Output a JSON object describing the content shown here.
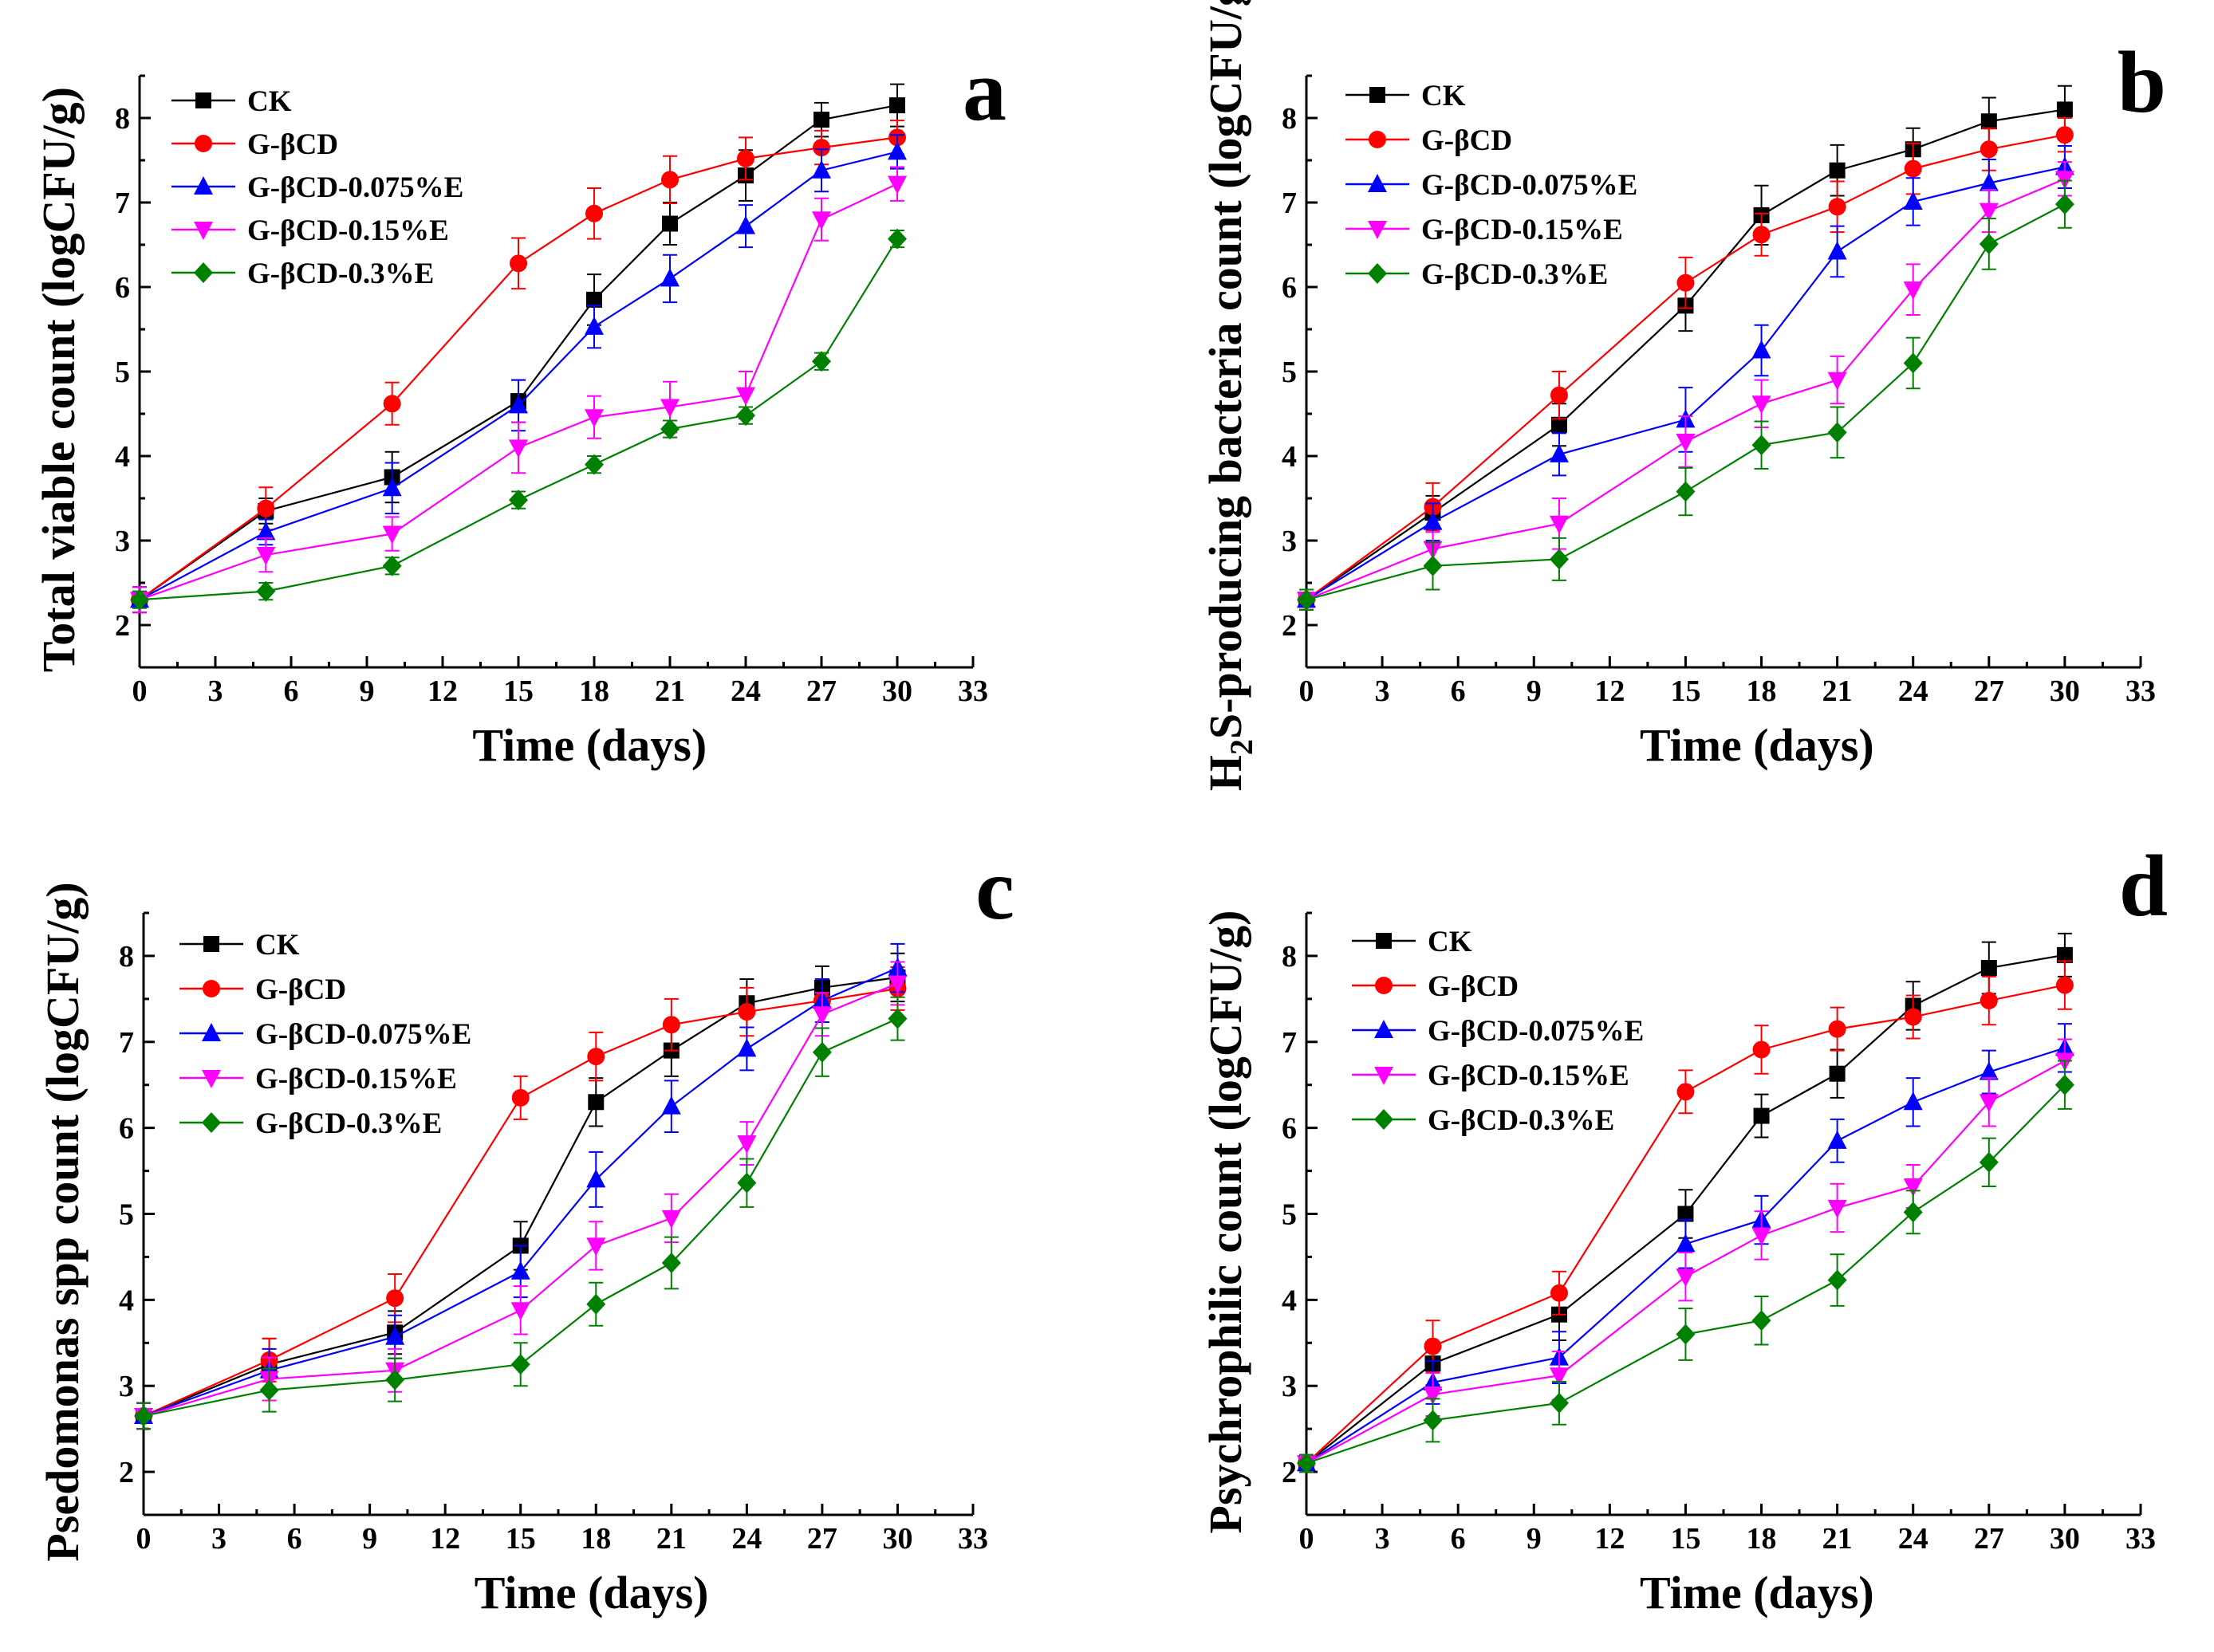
{
  "chart_data": [
    {
      "type": "line",
      "panel": "a",
      "xlabel": "Time (days)",
      "ylabel": "Total viable count (logCFU/g)",
      "ylabel_sub": "",
      "ylabel_rest": "",
      "xlim": [
        0,
        33
      ],
      "ylim": [
        1.5,
        8.5
      ],
      "xticks": [
        0,
        3,
        6,
        9,
        12,
        15,
        18,
        21,
        24,
        27,
        30,
        33
      ],
      "yticks": [
        2,
        3,
        4,
        5,
        6,
        7,
        8
      ],
      "x": [
        0,
        5,
        10,
        15,
        18,
        21,
        24,
        27,
        30
      ],
      "series": [
        {
          "name": "CK",
          "color": "#000000",
          "marker": "square",
          "values": [
            2.3,
            3.35,
            3.75,
            4.65,
            5.85,
            6.75,
            7.32,
            7.98,
            8.15
          ],
          "errors": [
            0.15,
            0.15,
            0.3,
            0.25,
            0.3,
            0.25,
            0.3,
            0.2,
            0.25
          ]
        },
        {
          "name": "G-βCD",
          "color": "#ff0000",
          "marker": "circle",
          "values": [
            2.3,
            3.38,
            4.62,
            6.28,
            6.87,
            7.27,
            7.52,
            7.65,
            7.77
          ],
          "errors": [
            0.15,
            0.25,
            0.25,
            0.3,
            0.3,
            0.28,
            0.25,
            0.2,
            0.2
          ]
        },
        {
          "name": "G-βCD-0.075%E",
          "color": "#0000ff",
          "marker": "triangle-up",
          "values": [
            2.3,
            3.1,
            3.62,
            4.6,
            5.53,
            6.1,
            6.72,
            7.38,
            7.6
          ],
          "errors": [
            0.15,
            0.15,
            0.3,
            0.3,
            0.25,
            0.28,
            0.25,
            0.25,
            0.2
          ]
        },
        {
          "name": "G-βCD-0.15%E",
          "color": "#ff00ff",
          "marker": "triangle-down",
          "values": [
            2.3,
            2.83,
            3.08,
            4.1,
            4.46,
            4.58,
            4.72,
            6.8,
            7.22
          ],
          "errors": [
            0.15,
            0.2,
            0.2,
            0.3,
            0.25,
            0.3,
            0.28,
            0.25,
            0.2
          ]
        },
        {
          "name": "G-βCD-0.3%E",
          "color": "#008000",
          "marker": "diamond",
          "values": [
            2.3,
            2.4,
            2.7,
            3.48,
            3.9,
            4.32,
            4.48,
            5.12,
            6.57
          ],
          "errors": [
            0.1,
            0.1,
            0.1,
            0.1,
            0.1,
            0.1,
            0.1,
            0.1,
            0.1
          ]
        }
      ]
    },
    {
      "type": "line",
      "panel": "b",
      "xlabel": "Time (days)",
      "ylabel": "H",
      "ylabel_sub": "2",
      "ylabel_rest": "S-producing bacteria count (logCFU/g)",
      "xlim": [
        0,
        33
      ],
      "ylim": [
        1.5,
        8.5
      ],
      "xticks": [
        0,
        3,
        6,
        9,
        12,
        15,
        18,
        21,
        24,
        27,
        30,
        33
      ],
      "yticks": [
        2,
        3,
        4,
        5,
        6,
        7,
        8
      ],
      "x": [
        0,
        5,
        10,
        15,
        18,
        21,
        24,
        27,
        30
      ],
      "series": [
        {
          "name": "CK",
          "color": "#000000",
          "marker": "square",
          "values": [
            2.3,
            3.33,
            4.37,
            5.78,
            6.85,
            7.38,
            7.63,
            7.96,
            8.1
          ],
          "errors": [
            0.12,
            0.2,
            0.25,
            0.3,
            0.35,
            0.3,
            0.25,
            0.28,
            0.28
          ]
        },
        {
          "name": "G-βCD",
          "color": "#ff0000",
          "marker": "circle",
          "values": [
            2.3,
            3.4,
            4.72,
            6.05,
            6.62,
            6.95,
            7.4,
            7.63,
            7.8
          ],
          "errors": [
            0.12,
            0.28,
            0.28,
            0.3,
            0.25,
            0.3,
            0.3,
            0.25,
            0.2
          ]
        },
        {
          "name": "G-βCD-0.075%E",
          "color": "#0000ff",
          "marker": "triangle-up",
          "values": [
            2.3,
            3.22,
            4.02,
            4.43,
            5.25,
            6.42,
            7.01,
            7.23,
            7.42
          ],
          "errors": [
            0.12,
            0.22,
            0.25,
            0.38,
            0.3,
            0.3,
            0.28,
            0.28,
            0.25
          ]
        },
        {
          "name": "G-βCD-0.15%E",
          "color": "#ff00ff",
          "marker": "triangle-down",
          "values": [
            2.3,
            2.9,
            3.2,
            4.17,
            4.62,
            4.9,
            5.97,
            6.9,
            7.28
          ],
          "errors": [
            0.12,
            0.2,
            0.3,
            0.3,
            0.28,
            0.28,
            0.3,
            0.25,
            0.2
          ]
        },
        {
          "name": "G-βCD-0.3%E",
          "color": "#008000",
          "marker": "diamond",
          "values": [
            2.3,
            2.7,
            2.78,
            3.58,
            4.13,
            4.28,
            5.1,
            6.51,
            6.98
          ],
          "errors": [
            0.12,
            0.28,
            0.25,
            0.28,
            0.28,
            0.3,
            0.3,
            0.3,
            0.28
          ]
        }
      ]
    },
    {
      "type": "line",
      "panel": "c",
      "xlabel": "Time (days)",
      "ylabel": "Psedomonas spp count (logCFU/g)",
      "ylabel_sub": "",
      "ylabel_rest": "",
      "xlim": [
        0,
        33
      ],
      "ylim": [
        1.5,
        8.5
      ],
      "xticks": [
        0,
        3,
        6,
        9,
        12,
        15,
        18,
        21,
        24,
        27,
        30,
        33
      ],
      "yticks": [
        2,
        3,
        4,
        5,
        6,
        7,
        8
      ],
      "x": [
        0,
        5,
        10,
        15,
        18,
        21,
        24,
        27,
        30
      ],
      "series": [
        {
          "name": "CK",
          "color": "#000000",
          "marker": "square",
          "values": [
            2.65,
            3.25,
            3.62,
            4.63,
            6.3,
            6.9,
            7.45,
            7.63,
            7.75
          ],
          "errors": [
            0.15,
            0.3,
            0.25,
            0.28,
            0.28,
            0.3,
            0.28,
            0.25,
            0.28
          ]
        },
        {
          "name": "G-βCD",
          "color": "#ff0000",
          "marker": "circle",
          "values": [
            2.65,
            3.3,
            4.02,
            6.35,
            6.83,
            7.2,
            7.35,
            7.48,
            7.62
          ],
          "errors": [
            0.15,
            0.25,
            0.28,
            0.25,
            0.28,
            0.3,
            0.28,
            0.25,
            0.25
          ]
        },
        {
          "name": "G-βCD-0.075%E",
          "color": "#0000ff",
          "marker": "triangle-up",
          "values": [
            2.65,
            3.18,
            3.57,
            4.33,
            5.4,
            6.25,
            6.92,
            7.48,
            7.86
          ],
          "errors": [
            0.15,
            0.25,
            0.25,
            0.3,
            0.32,
            0.3,
            0.25,
            0.25,
            0.28
          ]
        },
        {
          "name": "G-βCD-0.15%E",
          "color": "#ff00ff",
          "marker": "triangle-down",
          "values": [
            2.65,
            3.08,
            3.18,
            3.88,
            4.63,
            4.95,
            5.82,
            7.32,
            7.68
          ],
          "errors": [
            0.15,
            0.25,
            0.25,
            0.28,
            0.28,
            0.28,
            0.25,
            0.25,
            0.25
          ]
        },
        {
          "name": "G-βCD-0.3%E",
          "color": "#008000",
          "marker": "diamond",
          "values": [
            2.65,
            2.95,
            3.07,
            3.25,
            3.95,
            4.43,
            5.36,
            6.88,
            7.27
          ],
          "errors": [
            0.15,
            0.25,
            0.25,
            0.25,
            0.25,
            0.3,
            0.28,
            0.28,
            0.25
          ]
        }
      ]
    },
    {
      "type": "line",
      "panel": "d",
      "xlabel": "Time (days)",
      "ylabel": "Psychrophilic count (logCFU/g)",
      "ylabel_sub": "",
      "ylabel_rest": "",
      "xlim": [
        0,
        33
      ],
      "ylim": [
        1.5,
        8.5
      ],
      "xticks": [
        0,
        3,
        6,
        9,
        12,
        15,
        18,
        21,
        24,
        27,
        30,
        33
      ],
      "yticks": [
        2,
        3,
        4,
        5,
        6,
        7,
        8
      ],
      "x": [
        0,
        5,
        10,
        15,
        18,
        21,
        24,
        27,
        30
      ],
      "series": [
        {
          "name": "CK",
          "color": "#000000",
          "marker": "square",
          "values": [
            2.1,
            3.26,
            3.83,
            5.0,
            6.14,
            6.63,
            7.42,
            7.86,
            8.01
          ],
          "errors": [
            0.1,
            0.25,
            0.3,
            0.28,
            0.25,
            0.28,
            0.28,
            0.3,
            0.25
          ]
        },
        {
          "name": "G-βCD",
          "color": "#ff0000",
          "marker": "circle",
          "values": [
            2.1,
            3.46,
            4.08,
            6.42,
            6.91,
            7.15,
            7.29,
            7.48,
            7.66
          ],
          "errors": [
            0.1,
            0.3,
            0.25,
            0.25,
            0.28,
            0.25,
            0.25,
            0.28,
            0.28
          ]
        },
        {
          "name": "G-βCD-0.075%E",
          "color": "#0000ff",
          "marker": "triangle-up",
          "values": [
            2.1,
            3.04,
            3.33,
            4.65,
            4.93,
            5.85,
            6.3,
            6.65,
            6.93
          ],
          "errors": [
            0.1,
            0.25,
            0.3,
            0.28,
            0.28,
            0.25,
            0.28,
            0.25,
            0.28
          ]
        },
        {
          "name": "G-βCD-0.15%E",
          "color": "#ff00ff",
          "marker": "triangle-down",
          "values": [
            2.1,
            2.9,
            3.12,
            4.27,
            4.75,
            5.07,
            5.32,
            6.3,
            6.78
          ],
          "errors": [
            0.1,
            0.25,
            0.28,
            0.28,
            0.28,
            0.28,
            0.25,
            0.28,
            0.25
          ]
        },
        {
          "name": "G-βCD-0.3%E",
          "color": "#008000",
          "marker": "diamond",
          "values": [
            2.1,
            2.6,
            2.8,
            3.6,
            3.76,
            4.23,
            5.02,
            5.6,
            6.5
          ],
          "errors": [
            0.1,
            0.25,
            0.25,
            0.3,
            0.28,
            0.3,
            0.25,
            0.28,
            0.28
          ]
        }
      ]
    }
  ]
}
